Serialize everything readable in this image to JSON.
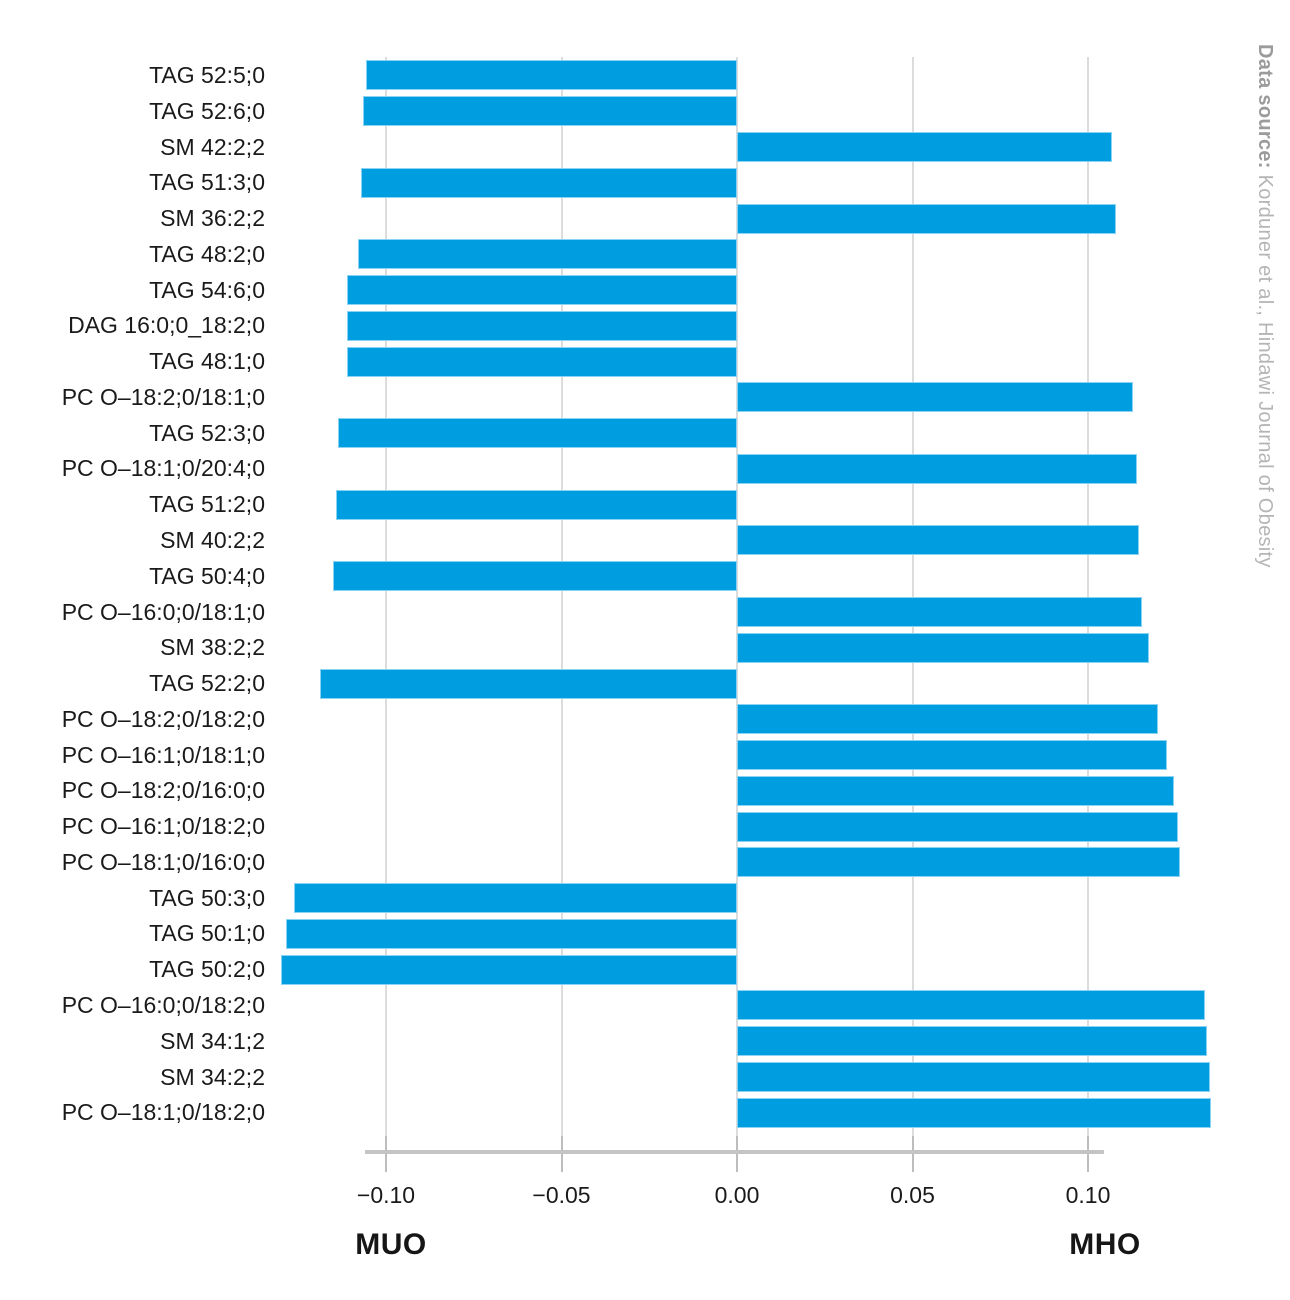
{
  "chart_data": {
    "type": "bar",
    "orientation": "horizontal",
    "title": "",
    "xlabel": "",
    "ylabel": "",
    "categories": [
      "TAG 52:5;0",
      "TAG 52:6;0",
      "SM 42:2;2",
      "TAG 51:3;0",
      "SM 36:2;2",
      "TAG 48:2;0",
      "TAG 54:6;0",
      "DAG 16:0;0_18:2;0",
      "TAG 48:1;0",
      "PC O–18:2;0/18:1;0",
      "TAG 52:3;0",
      "PC O–18:1;0/20:4;0",
      "TAG 51:2;0",
      "SM 40:2;2",
      "TAG 50:4;0",
      "PC O–16:0;0/18:1;0",
      "SM 38:2;2",
      "TAG 52:2;0",
      "PC O–18:2;0/18:2;0",
      "PC O–16:1;0/18:1;0",
      "PC O–18:2;0/16:0;0",
      "PC O–16:1;0/18:2;0",
      "PC O–18:1;0/16:0;0",
      "TAG 50:3;0",
      "TAG 50:1;0",
      "TAG 50:2;0",
      "PC O–16:0;0/18:2;0",
      "SM 34:1;2",
      "SM 34:2;2",
      "PC O–18:1;0/18:2;0"
    ],
    "values": [
      -0.1058,
      -0.1065,
      0.1069,
      -0.1071,
      0.108,
      -0.108,
      -0.111,
      -0.1111,
      -0.1112,
      0.1128,
      -0.1136,
      0.1141,
      -0.1143,
      0.1145,
      -0.1151,
      0.1154,
      0.1174,
      -0.1188,
      0.12,
      0.1224,
      0.1245,
      0.1255,
      0.1261,
      -0.1263,
      -0.1286,
      -0.13,
      0.1332,
      0.1339,
      0.1347,
      0.1351
    ],
    "xlim": [
      -0.138,
      0.138
    ],
    "x_ticks": [
      {
        "value": -0.1,
        "label": "−0.10"
      },
      {
        "value": -0.05,
        "label": "−0.05"
      },
      {
        "value": 0.0,
        "label": "0.00"
      },
      {
        "value": 0.05,
        "label": "0.05"
      },
      {
        "value": 0.1,
        "label": "0.10"
      }
    ],
    "left_group_label": "MUO",
    "right_group_label": "MHO",
    "grid": true,
    "legend": false,
    "bar_color": "#009EE0"
  },
  "source_note": {
    "prefix": "Data source: ",
    "text": "Korduner et al., Hindawi Journal of Obesity"
  },
  "colors": {
    "background": "#FFFFFF",
    "bar": "#009EE0",
    "bar_edge": "#8AD2F2",
    "gridline": "#DCDCDC",
    "axis_line": "#C4C4C4",
    "tick": "#BDBDBD",
    "text": "#1A1A1A",
    "source_prefix": "#9B9B9B",
    "source_text": "#B5B5B5"
  }
}
